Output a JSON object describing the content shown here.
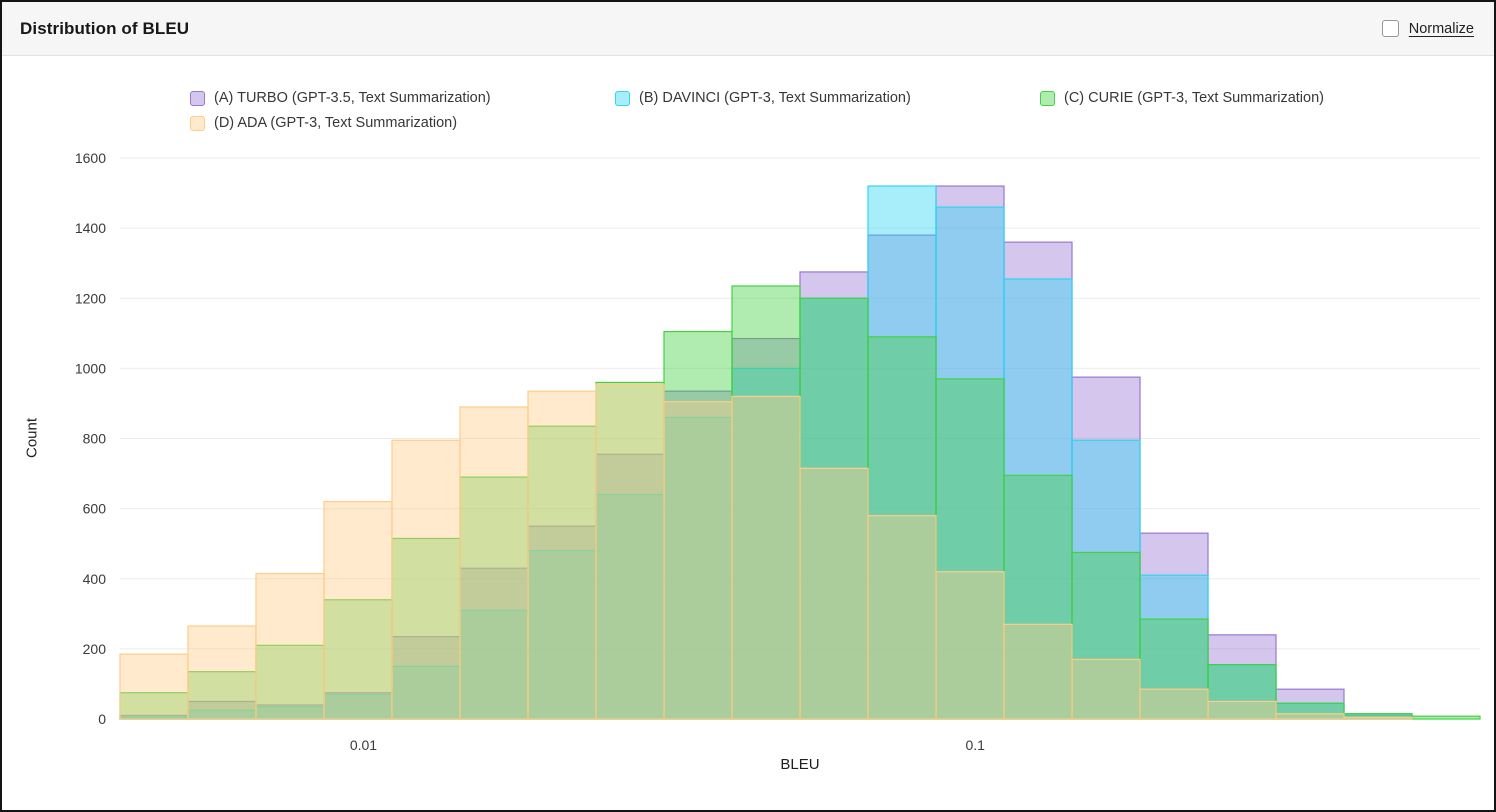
{
  "header": {
    "title": "Distribution of BLEU",
    "normalize_label": "Normalize",
    "normalize_checked": false
  },
  "chart_data": {
    "type": "bar",
    "subtype": "overlaid-histogram",
    "title": "Distribution of BLEU",
    "xlabel": "BLEU",
    "ylabel": "Count",
    "x_scale": "log",
    "grid": "horizontal",
    "legend_position": "top",
    "ylim": [
      0,
      1600
    ],
    "y_ticks": [
      0,
      200,
      400,
      600,
      800,
      1000,
      1200,
      1400,
      1600
    ],
    "x_ticks": [
      0.01,
      0.1
    ],
    "x_tick_labels": [
      "0.01",
      "0.1"
    ],
    "fill_opacity": 0.42,
    "bin_edges": [
      0.004,
      0.005166,
      0.006673,
      0.00862,
      0.011134,
      0.014382,
      0.018577,
      0.023996,
      0.030995,
      0.040036,
      0.051713,
      0.066797,
      0.08628,
      0.111446,
      0.143953,
      0.185938,
      0.24017,
      0.310222,
      0.400697,
      0.517564,
      0.668523
    ],
    "series": [
      {
        "name": "(A) TURBO (GPT-3.5, Text Summarization)",
        "color": "#9878d1",
        "values": [
          10,
          50,
          40,
          75,
          235,
          430,
          550,
          755,
          935,
          1085,
          1275,
          1380,
          1520,
          1360,
          975,
          530,
          240,
          85,
          15,
          0
        ]
      },
      {
        "name": "(B) DAVINCI (GPT-3, Text Summarization)",
        "color": "#2fd5f2",
        "values": [
          5,
          25,
          35,
          70,
          150,
          310,
          480,
          640,
          860,
          1000,
          1200,
          1520,
          1460,
          1255,
          795,
          410,
          155,
          45,
          10,
          0
        ]
      },
      {
        "name": "(C) CURIE (GPT-3, Text Summarization)",
        "color": "#43d143",
        "values": [
          75,
          135,
          210,
          340,
          515,
          690,
          835,
          960,
          1105,
          1235,
          1200,
          1090,
          970,
          695,
          475,
          285,
          155,
          45,
          15,
          8
        ]
      },
      {
        "name": "(D) ADA (GPT-3, Text Summarization)",
        "color": "#ffcc8a",
        "values": [
          185,
          265,
          415,
          620,
          795,
          890,
          935,
          955,
          905,
          920,
          715,
          580,
          420,
          270,
          170,
          85,
          50,
          15,
          5,
          0
        ]
      }
    ]
  }
}
